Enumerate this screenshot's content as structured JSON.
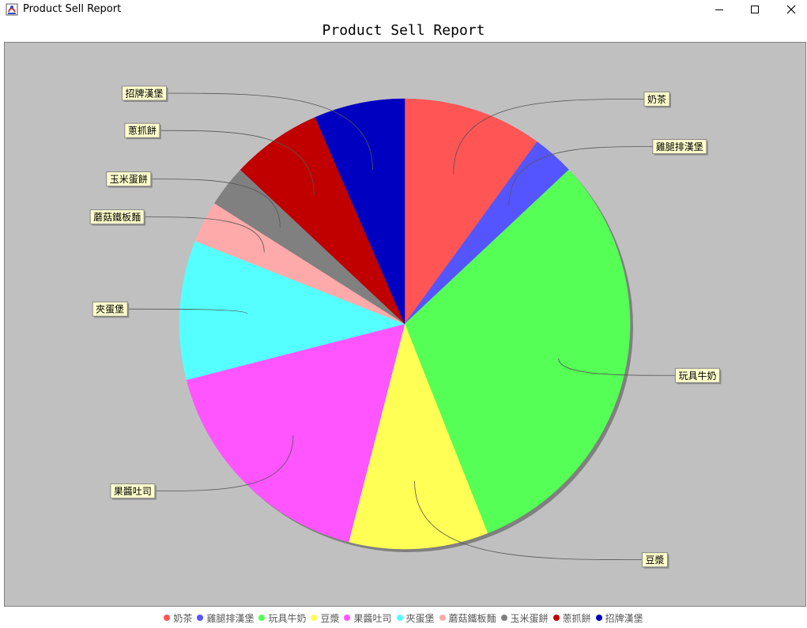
{
  "window": {
    "title": "Product Sell Report"
  },
  "chart_data": {
    "type": "pie",
    "title": "Product Sell Report",
    "legend_position": "bottom",
    "plot_background": "#c0c0c0",
    "slices": [
      {
        "name": "奶茶",
        "value": 10,
        "color": "#ff5555"
      },
      {
        "name": "雞腿排漢堡",
        "value": 3,
        "color": "#5555ff"
      },
      {
        "name": "玩具牛奶",
        "value": 31,
        "color": "#55ff55"
      },
      {
        "name": "豆漿",
        "value": 10,
        "color": "#ffff55"
      },
      {
        "name": "果醬吐司",
        "value": 17,
        "color": "#ff55ff"
      },
      {
        "name": "夾蛋堡",
        "value": 10,
        "color": "#55ffff"
      },
      {
        "name": "蘑菇鐵板麵",
        "value": 3,
        "color": "#ffaaaa"
      },
      {
        "name": "玉米蛋餅",
        "value": 3,
        "color": "#808080"
      },
      {
        "name": "蔥抓餅",
        "value": 6.5,
        "color": "#c00000"
      },
      {
        "name": "招牌漢堡",
        "value": 6.5,
        "color": "#0000c0"
      }
    ]
  }
}
